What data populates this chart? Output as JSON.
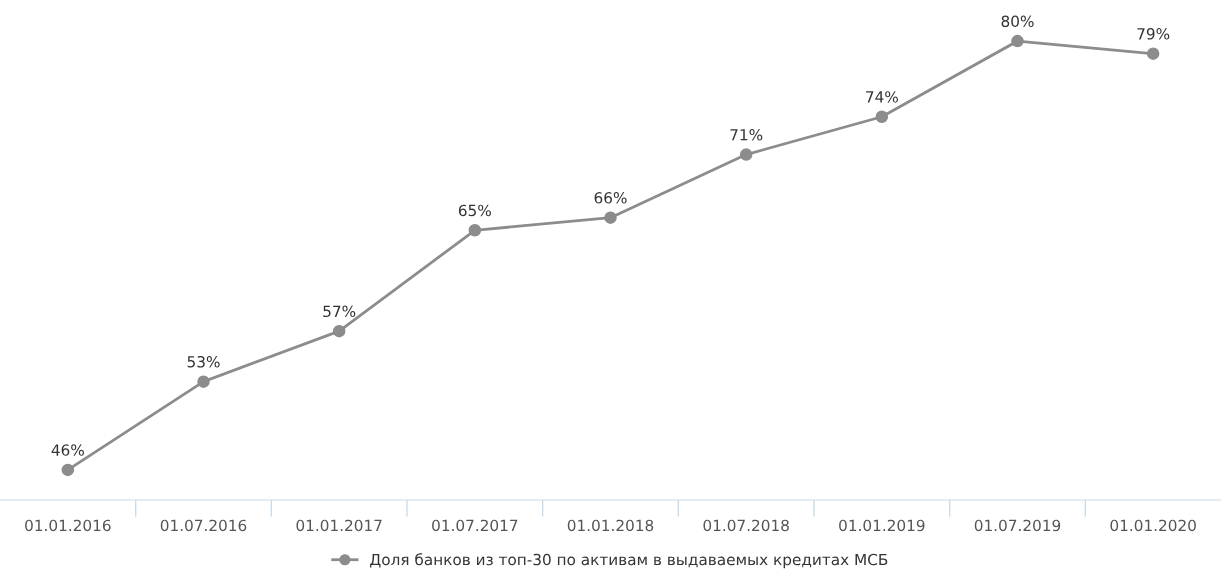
{
  "chart_data": {
    "type": "line",
    "categories": [
      "01.01.2016",
      "01.07.2016",
      "01.01.2017",
      "01.07.2017",
      "01.01.2018",
      "01.07.2018",
      "01.01.2019",
      "01.07.2019",
      "01.01.2020"
    ],
    "series": [
      {
        "name": "Доля банков из топ-30 по активам в выдаваемых кредитах МСБ",
        "color": "#8c8c8c",
        "values": [
          46,
          53,
          57,
          65,
          66,
          71,
          74,
          80,
          79
        ],
        "value_labels": [
          "46%",
          "53%",
          "57%",
          "65%",
          "66%",
          "71%",
          "74%",
          "80%",
          "79%"
        ]
      }
    ],
    "tick_labels": "x",
    "grid": false,
    "legend": "bottom",
    "marker": "circle",
    "line_style": "solid"
  }
}
